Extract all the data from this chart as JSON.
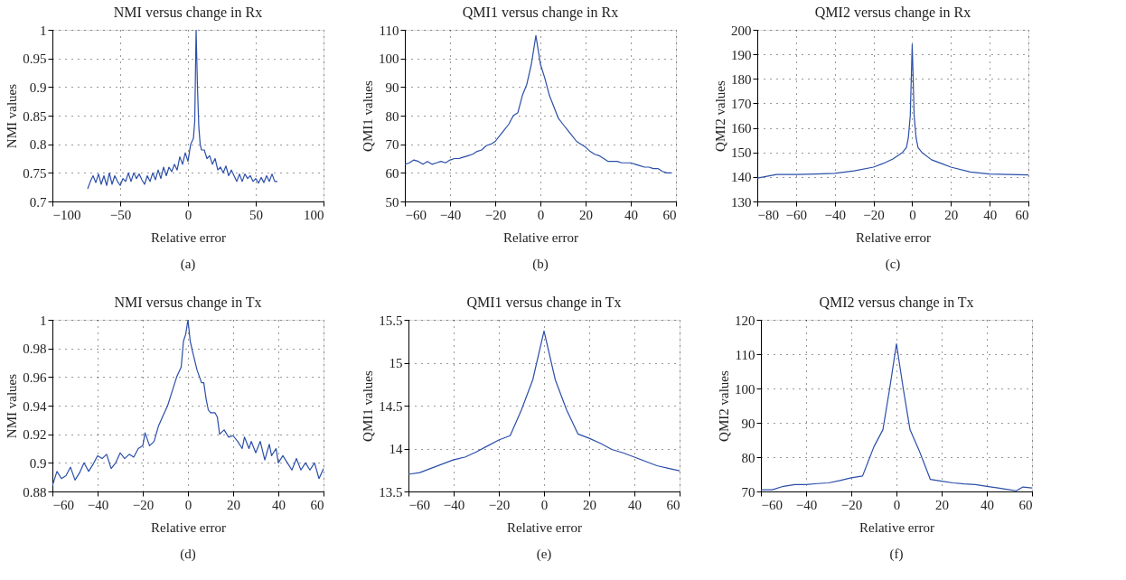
{
  "chart_data": [
    {
      "type": "line",
      "title": "NMI versus change in Rx",
      "xlabel": "Relative error",
      "ylabel": "NMI values",
      "annotations": [
        "(a)"
      ],
      "grid": true,
      "xlim": [
        -100,
        100
      ],
      "xticks": [
        -100,
        -50,
        0,
        50,
        100
      ],
      "ylim": [
        0.7,
        1
      ],
      "yticks": [
        0.7,
        0.75,
        0.8,
        0.85,
        0.9,
        0.95,
        1
      ],
      "x": [
        -74,
        -72,
        -70,
        -68,
        -66,
        -64,
        -62,
        -60,
        -58,
        -56,
        -54,
        -52,
        -50,
        -48,
        -46,
        -44,
        -42,
        -40,
        -38,
        -36,
        -34,
        -32,
        -30,
        -28,
        -26,
        -24,
        -22,
        -20,
        -18,
        -16,
        -14,
        -12,
        -10,
        -8,
        -6,
        -4,
        -2,
        0,
        2,
        4,
        5,
        6,
        7,
        8,
        9,
        10,
        12,
        14,
        16,
        18,
        20,
        22,
        24,
        26,
        28,
        30,
        32,
        34,
        36,
        38,
        40,
        42,
        44,
        46,
        48,
        50,
        52,
        54,
        56,
        58,
        60,
        62,
        64,
        66
      ],
      "series": [
        {
          "color": "#2b4ea8",
          "values": [
            0.722,
            0.735,
            0.745,
            0.733,
            0.748,
            0.73,
            0.745,
            0.728,
            0.75,
            0.73,
            0.745,
            0.735,
            0.728,
            0.74,
            0.735,
            0.75,
            0.735,
            0.75,
            0.74,
            0.748,
            0.738,
            0.73,
            0.745,
            0.735,
            0.75,
            0.738,
            0.755,
            0.74,
            0.76,
            0.745,
            0.76,
            0.752,
            0.765,
            0.755,
            0.778,
            0.765,
            0.785,
            0.77,
            0.8,
            0.81,
            0.84,
            1,
            0.9,
            0.83,
            0.8,
            0.79,
            0.79,
            0.775,
            0.78,
            0.765,
            0.775,
            0.755,
            0.76,
            0.75,
            0.762,
            0.745,
            0.755,
            0.745,
            0.735,
            0.748,
            0.735,
            0.748,
            0.74,
            0.745,
            0.735,
            0.74,
            0.732,
            0.742,
            0.733,
            0.745,
            0.735,
            0.748,
            0.735,
            0.735
          ]
        }
      ]
    },
    {
      "type": "line",
      "title": "QMI1 versus change in Rx",
      "xlabel": "Relative error",
      "ylabel": "QMI1 values",
      "annotations": [
        "(b)"
      ],
      "grid": true,
      "xlim": [
        -60,
        60
      ],
      "xticks": [
        -60,
        -40,
        -20,
        0,
        20,
        40,
        60
      ],
      "ylim": [
        50,
        110
      ],
      "yticks": [
        50,
        60,
        70,
        80,
        90,
        100,
        110
      ],
      "x": [
        -60,
        -58,
        -56,
        -54,
        -52,
        -50,
        -48,
        -46,
        -44,
        -42,
        -40,
        -38,
        -36,
        -34,
        -32,
        -30,
        -28,
        -26,
        -24,
        -22,
        -20,
        -18,
        -16,
        -14,
        -12,
        -10,
        -8,
        -6,
        -4,
        -2,
        0,
        2,
        4,
        6,
        8,
        10,
        12,
        14,
        16,
        18,
        20,
        22,
        24,
        26,
        28,
        30,
        32,
        34,
        36,
        38,
        40,
        42,
        44,
        46,
        48,
        50,
        52,
        54,
        56,
        58
      ],
      "series": [
        {
          "color": "#2b4ea8",
          "values": [
            63,
            63.5,
            64.5,
            64,
            63,
            64,
            63,
            63.5,
            64,
            63.5,
            64.5,
            65,
            65,
            65.5,
            66,
            66.5,
            67.5,
            68,
            69.5,
            70,
            71,
            73,
            75,
            77,
            80,
            81,
            87,
            91,
            98,
            108,
            98,
            93,
            87,
            83,
            79,
            77,
            75,
            73,
            71,
            70,
            69,
            67.5,
            66.5,
            66,
            65,
            64,
            64,
            64,
            63.5,
            63.5,
            63.5,
            63,
            62.5,
            62,
            62,
            61.5,
            61.5,
            60.5,
            60,
            60
          ]
        }
      ]
    },
    {
      "type": "line",
      "title": "QMI2 versus change in Rx",
      "xlabel": "Relative error",
      "ylabel": "QMI2 values",
      "annotations": [
        "(c)"
      ],
      "grid": true,
      "xlim": [
        -80,
        60
      ],
      "xticks": [
        -80,
        -60,
        -40,
        -20,
        0,
        20,
        40,
        60
      ],
      "ylim": [
        130,
        200
      ],
      "yticks": [
        130,
        140,
        150,
        160,
        170,
        180,
        190,
        200
      ],
      "x": [
        -80,
        -75,
        -70,
        -60,
        -50,
        -40,
        -30,
        -20,
        -15,
        -10,
        -5,
        -3,
        -2,
        -1,
        0,
        1,
        2,
        3,
        5,
        10,
        15,
        20,
        30,
        40,
        50,
        60
      ],
      "series": [
        {
          "color": "#2b4ea8",
          "values": [
            139.5,
            140.3,
            141,
            141,
            141.2,
            141.5,
            142.5,
            144,
            145.5,
            147.3,
            150,
            152,
            156,
            165,
            194,
            165,
            156,
            152,
            150,
            147,
            145.5,
            144,
            142,
            141.2,
            141,
            140.8
          ]
        }
      ]
    },
    {
      "type": "line",
      "title": "NMI versus change in Tx",
      "xlabel": "Relative error",
      "ylabel": "NMI values",
      "annotations": [
        "(d)"
      ],
      "grid": true,
      "xlim": [
        -60,
        60
      ],
      "xticks": [
        -60,
        -40,
        -20,
        0,
        20,
        40,
        60
      ],
      "ylim": [
        0.88,
        1
      ],
      "yticks": [
        0.88,
        0.9,
        0.92,
        0.94,
        0.96,
        0.98,
        1
      ],
      "x": [
        -60,
        -58,
        -56,
        -54,
        -52,
        -50,
        -48,
        -46,
        -44,
        -42,
        -40,
        -38,
        -36,
        -34,
        -32,
        -30,
        -28,
        -26,
        -24,
        -22,
        -20,
        -19,
        -17,
        -15,
        -13,
        -11,
        -9,
        -7,
        -5,
        -3,
        -2,
        -1,
        0,
        1,
        2,
        4,
        6,
        7,
        8,
        9,
        10,
        12,
        13,
        14,
        16,
        18,
        20,
        22,
        24,
        25,
        27,
        28,
        30,
        32,
        34,
        36,
        37,
        39,
        40,
        42,
        44,
        46,
        48,
        50,
        52,
        54,
        56,
        58,
        60
      ],
      "series": [
        {
          "color": "#2b4ea8",
          "values": [
            0.884,
            0.894,
            0.889,
            0.891,
            0.897,
            0.888,
            0.893,
            0.9,
            0.894,
            0.899,
            0.905,
            0.903,
            0.906,
            0.896,
            0.9,
            0.907,
            0.903,
            0.906,
            0.904,
            0.91,
            0.912,
            0.921,
            0.912,
            0.915,
            0.926,
            0.933,
            0.94,
            0.95,
            0.96,
            0.967,
            0.985,
            0.99,
            1,
            0.985,
            0.978,
            0.965,
            0.956,
            0.956,
            0.945,
            0.937,
            0.935,
            0.935,
            0.932,
            0.92,
            0.923,
            0.918,
            0.919,
            0.915,
            0.91,
            0.918,
            0.91,
            0.915,
            0.907,
            0.915,
            0.902,
            0.913,
            0.905,
            0.91,
            0.9,
            0.905,
            0.9,
            0.895,
            0.903,
            0.895,
            0.9,
            0.895,
            0.9,
            0.889,
            0.896
          ]
        }
      ]
    },
    {
      "type": "line",
      "title": "QMI1 versus change in Tx",
      "xlabel": "Relative error",
      "ylabel": "QMI1 values",
      "annotations": [
        "(e)"
      ],
      "grid": true,
      "xlim": [
        -60,
        60
      ],
      "xticks": [
        -60,
        -40,
        -20,
        0,
        20,
        40,
        60
      ],
      "ylim": [
        13.5,
        15.5
      ],
      "yticks": [
        13.5,
        14,
        14.5,
        15,
        15.5
      ],
      "x": [
        -60,
        -55,
        -50,
        -45,
        -40,
        -35,
        -30,
        -25,
        -20,
        -15,
        -10,
        -5,
        0,
        5,
        10,
        15,
        20,
        25,
        30,
        35,
        40,
        45,
        50,
        55,
        60
      ],
      "series": [
        {
          "color": "#2b4ea8",
          "values": [
            13.7,
            13.72,
            13.77,
            13.82,
            13.87,
            13.9,
            13.96,
            14.03,
            14.1,
            14.15,
            14.45,
            14.8,
            15.37,
            14.8,
            14.45,
            14.17,
            14.12,
            14.06,
            13.99,
            13.95,
            13.9,
            13.85,
            13.8,
            13.77,
            13.74
          ]
        }
      ]
    },
    {
      "type": "line",
      "title": "QMI2 versus change in Tx",
      "xlabel": "Relative error",
      "ylabel": "QMI2 values",
      "annotations": [
        "(f)"
      ],
      "grid": true,
      "xlim": [
        -60,
        60
      ],
      "xticks": [
        -60,
        -40,
        -20,
        0,
        20,
        40,
        60
      ],
      "ylim": [
        70,
        120
      ],
      "yticks": [
        70,
        80,
        90,
        100,
        110,
        120
      ],
      "x": [
        -60,
        -55,
        -50,
        -45,
        -40,
        -35,
        -30,
        -25,
        -20,
        -15,
        -10,
        -6,
        -3,
        0,
        3,
        6,
        10,
        15,
        20,
        25,
        30,
        35,
        40,
        45,
        50,
        53,
        56,
        60
      ],
      "series": [
        {
          "color": "#2b4ea8",
          "values": [
            70.5,
            70.5,
            71.5,
            72,
            72,
            72.3,
            72.5,
            73.2,
            74,
            74.5,
            83,
            88,
            100,
            113,
            100,
            88,
            82,
            73.5,
            73,
            72.5,
            72.2,
            72,
            71.5,
            71,
            70.5,
            70.2,
            71.3,
            71
          ]
        }
      ]
    }
  ]
}
